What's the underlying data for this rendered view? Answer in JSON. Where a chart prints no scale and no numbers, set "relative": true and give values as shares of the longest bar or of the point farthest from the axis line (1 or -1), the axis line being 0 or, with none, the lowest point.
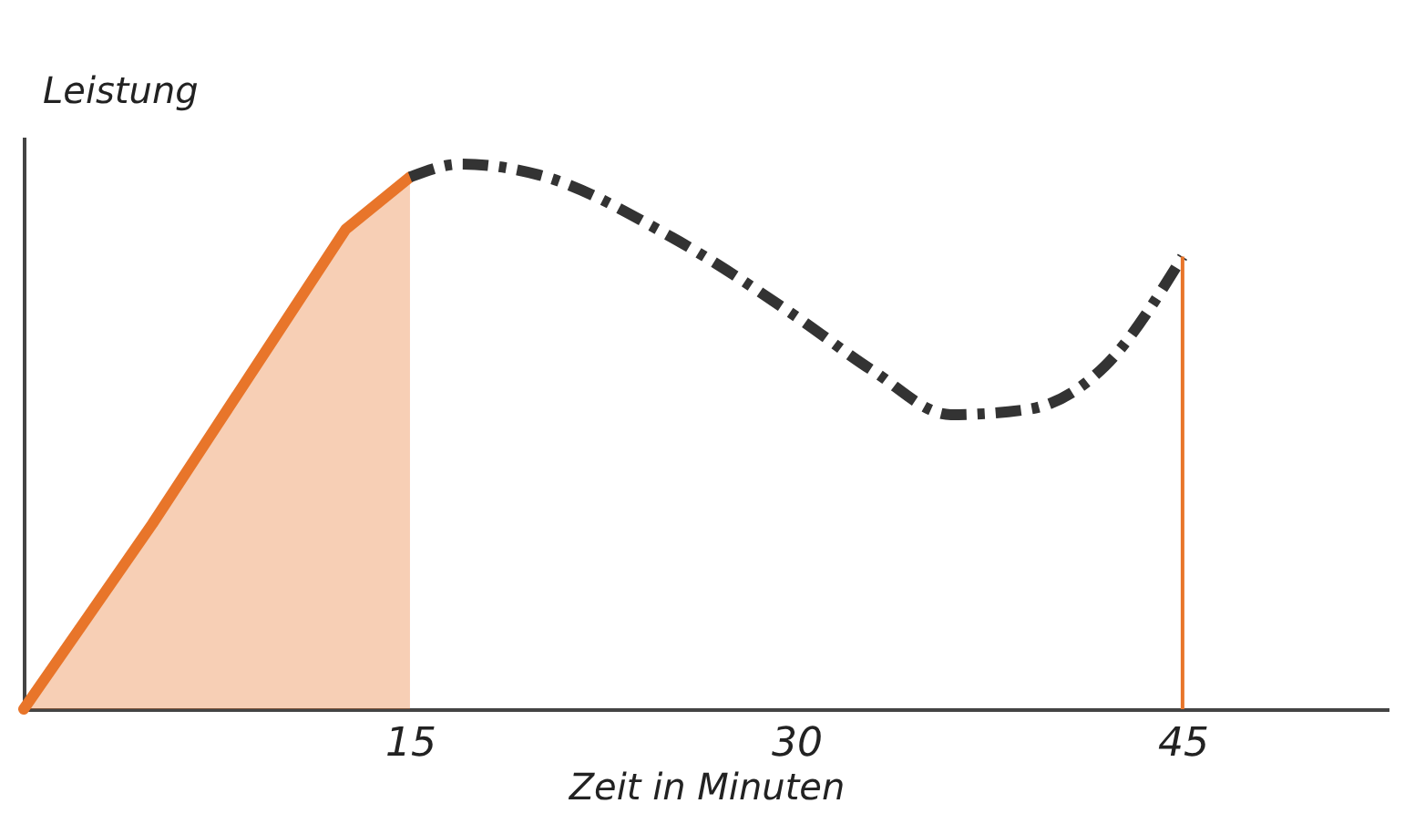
{
  "chart_data": {
    "type": "line",
    "relative": true,
    "xlabel": "Zeit in Minuten",
    "ylabel": "Leistung",
    "xlim": [
      0,
      53
    ],
    "xticks": [
      15,
      30,
      45
    ],
    "grid": false,
    "series": [
      {
        "type": "area",
        "color": "#e8752a",
        "x": [
          0,
          2.5,
          5,
          7.5,
          10,
          12.5,
          15
        ],
        "values": [
          0,
          0.17,
          0.34,
          0.52,
          0.7,
          0.88,
          0.976
        ]
      },
      {
        "color": "#333333",
        "line_style": "dashed",
        "x": [
          15,
          17,
          20,
          25,
          30,
          33,
          36,
          39,
          42,
          45
        ],
        "values": [
          0.976,
          1.0,
          0.98,
          0.87,
          0.72,
          0.62,
          0.54,
          0.55,
          0.63,
          0.83
        ]
      }
    ],
    "ref_lines": [
      {
        "axis": "x",
        "value": 45,
        "color": "#e8752a",
        "line_style": "solid"
      }
    ]
  }
}
